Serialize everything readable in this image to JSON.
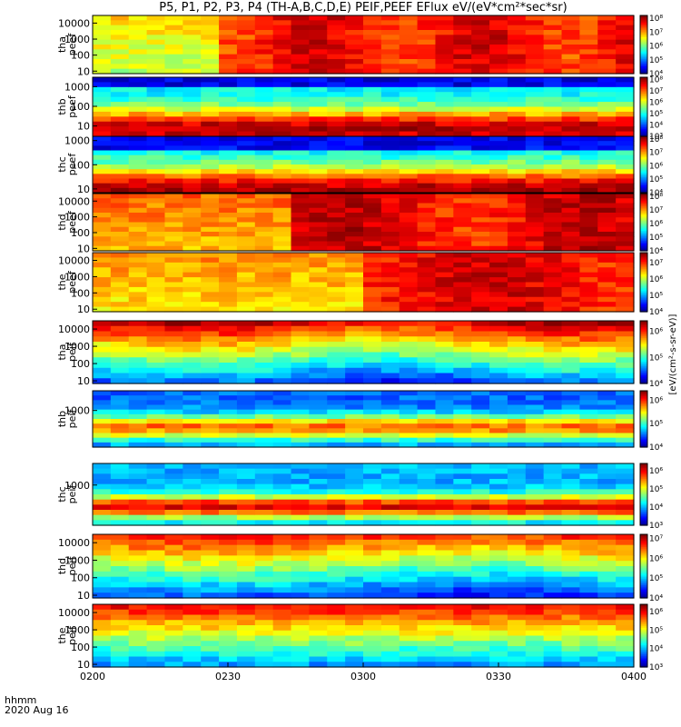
{
  "title": "P5, P1, P2, P3, P4 (TH-A,B,C,D,E) PEIF,PEEF EFlux eV/(eV*cm²*sec*sr)",
  "time_axis": {
    "label_line1": "hhmm",
    "label_line2": "2020 Aug 16",
    "ticks": [
      "0200",
      "0230",
      "0300",
      "0330",
      "0400"
    ],
    "start_minutes": 0,
    "end_minutes": 120
  },
  "colorbar_unit_label": "[eV/(cm²-s-sr-eV)]",
  "chart_data": [
    {
      "type": "heatmap",
      "probe": "tha",
      "species": "peef",
      "ylabel": [
        "tha",
        "peef"
      ],
      "yscale": "log",
      "ylim": [
        7,
        30000
      ],
      "yticks": [
        "10",
        "100",
        "1000",
        "10000"
      ],
      "cbar_ticks": [
        "10⁴",
        "10⁵",
        "10⁶",
        "10⁷",
        "10⁸"
      ],
      "cbar_range": [
        4,
        8.2
      ]
    },
    {
      "type": "heatmap",
      "probe": "thb",
      "species": "peef",
      "ylabel": [
        "thb",
        "peef"
      ],
      "yscale": "log",
      "ylim": [
        3,
        3000
      ],
      "yticks": [
        "10",
        "100",
        "1000"
      ],
      "cbar_ticks": [
        "10³",
        "10⁴",
        "10⁵",
        "10⁶",
        "10⁷",
        "10⁸"
      ],
      "cbar_range": [
        3,
        8.2
      ]
    },
    {
      "type": "heatmap",
      "probe": "thc",
      "species": "peef",
      "ylabel": [
        "thc",
        "peef"
      ],
      "yscale": "log",
      "ylim": [
        7,
        1500
      ],
      "yticks": [
        "10",
        "100",
        "1000"
      ],
      "cbar_ticks": [
        "10⁴",
        "10⁵",
        "10⁶",
        "10⁷",
        "10⁸"
      ],
      "cbar_range": [
        4,
        8.2
      ]
    },
    {
      "type": "heatmap",
      "probe": "thd",
      "species": "peef",
      "ylabel": [
        "thd",
        "peef"
      ],
      "yscale": "log",
      "ylim": [
        7,
        30000
      ],
      "yticks": [
        "10",
        "100",
        "1000",
        "10000"
      ],
      "cbar_ticks": [
        "10⁴",
        "10⁵",
        "10⁶",
        "10⁷",
        "10⁸"
      ],
      "cbar_range": [
        4,
        8.2
      ]
    },
    {
      "type": "heatmap",
      "probe": "the",
      "species": "peef",
      "ylabel": [
        "the",
        "peef"
      ],
      "yscale": "log",
      "ylim": [
        7,
        30000
      ],
      "yticks": [
        "10",
        "100",
        "1000",
        "10000"
      ],
      "cbar_ticks": [
        "10⁴",
        "10⁵",
        "10⁶",
        "10⁷"
      ],
      "cbar_range": [
        4,
        7.6
      ]
    },
    {
      "type": "heatmap",
      "probe": "tha",
      "species": "peif",
      "ylabel": [
        "tha",
        "peif"
      ],
      "yscale": "log",
      "ylim": [
        7,
        30000
      ],
      "yticks": [
        "10",
        "100",
        "1000",
        "10000"
      ],
      "cbar_ticks": [
        "10⁴",
        "10⁵",
        "10⁶"
      ],
      "cbar_range": [
        4,
        6.4
      ]
    },
    {
      "type": "heatmap",
      "probe": "thb",
      "species": "peif",
      "ylabel": [
        "thb",
        "peif"
      ],
      "yscale": "log",
      "ylim": [
        50,
        5000
      ],
      "yticks": [
        "1000"
      ],
      "cbar_ticks": [
        "10⁴",
        "10⁵",
        "10⁶"
      ],
      "cbar_range": [
        4,
        6.4
      ]
    },
    {
      "type": "heatmap",
      "probe": "thc",
      "species": "peif",
      "ylabel": [
        "thc",
        "peif"
      ],
      "yscale": "log",
      "ylim": [
        50,
        5000
      ],
      "yticks": [
        "1000"
      ],
      "cbar_ticks": [
        "10³",
        "10⁴",
        "10⁵",
        "10⁶"
      ],
      "cbar_range": [
        3,
        6.4
      ]
    },
    {
      "type": "heatmap",
      "probe": "thd",
      "species": "peif",
      "ylabel": [
        "thd",
        "peif"
      ],
      "yscale": "log",
      "ylim": [
        7,
        30000
      ],
      "yticks": [
        "10",
        "100",
        "1000",
        "10000"
      ],
      "cbar_ticks": [
        "10⁴",
        "10⁵",
        "10⁶",
        "10⁷"
      ],
      "cbar_range": [
        4,
        7.2
      ]
    },
    {
      "type": "heatmap",
      "probe": "the",
      "species": "peif",
      "ylabel": [
        "the",
        "peif"
      ],
      "yscale": "log",
      "ylim": [
        7,
        30000
      ],
      "yticks": [
        "10",
        "100",
        "1000",
        "10000"
      ],
      "cbar_ticks": [
        "10³",
        "10⁴",
        "10⁵",
        "10⁶"
      ],
      "cbar_range": [
        3,
        6.4
      ]
    }
  ]
}
